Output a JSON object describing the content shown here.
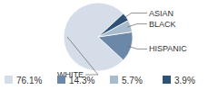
{
  "chart_data": {
    "type": "pie",
    "categories": [
      "WHITE",
      "HISPANIC",
      "BLACK",
      "ASIAN"
    ],
    "values": [
      76.1,
      14.3,
      5.7,
      3.9
    ],
    "value_labels": [
      "76.1%",
      "14.3%",
      "5.7%",
      "3.9%"
    ],
    "colors": [
      "#d4dde8",
      "#6b88a8",
      "#a9bccd",
      "#2d5275"
    ],
    "legend": "bottom"
  }
}
